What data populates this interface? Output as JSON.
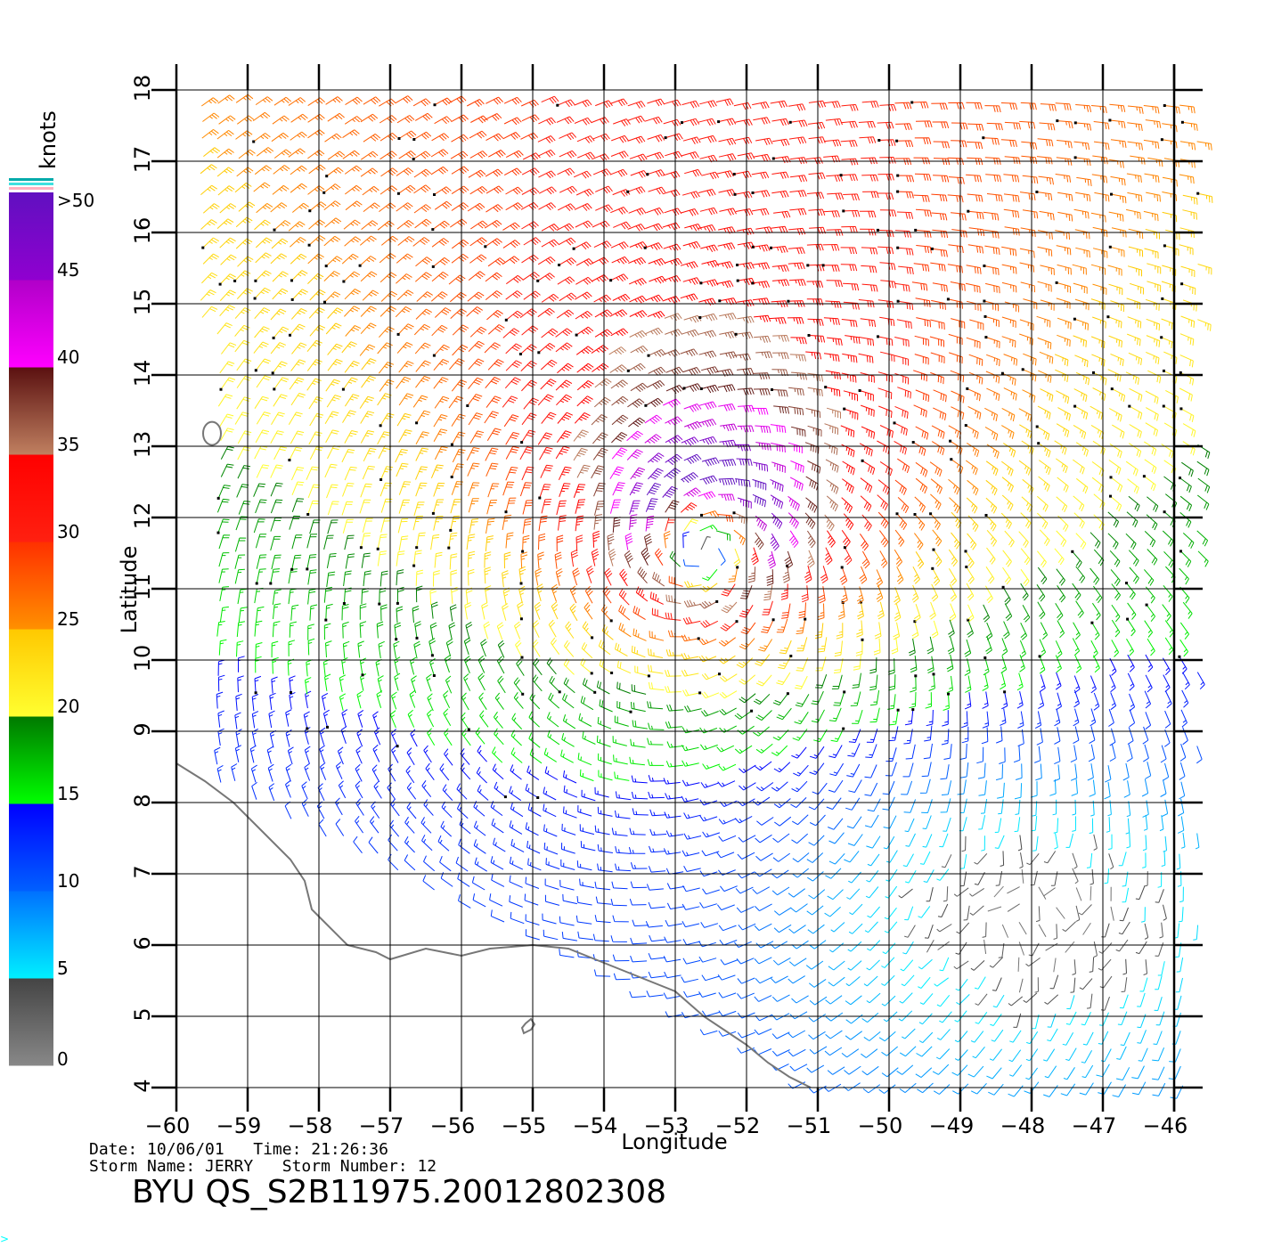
{
  "map": {
    "x_axis_label": "Longitude",
    "y_axis_label": "Latitude",
    "lon_ticks": [
      -60,
      -59,
      -58,
      -57,
      -56,
      -55,
      -54,
      -53,
      -52,
      -51,
      -50,
      -49,
      -48,
      -47,
      -46
    ],
    "lat_ticks": [
      4,
      5,
      6,
      7,
      8,
      9,
      10,
      11,
      12,
      13,
      14,
      15,
      16,
      17,
      18
    ],
    "lon_range": [
      -60,
      -45.6
    ],
    "lat_range": [
      4,
      18
    ],
    "storm_center": {
      "lon": -52.6,
      "lat": 11.7
    },
    "coastline_color": "#777777",
    "grid_color": "#000000"
  },
  "colorbar": {
    "title": "knots",
    "tick_labels": [
      ">50",
      "45",
      "40",
      "35",
      "30",
      "25",
      "20",
      "15",
      "10",
      "5",
      "0"
    ],
    "segments": [
      {
        "from": 0,
        "to": 5,
        "top": "#444444",
        "bottom": "#888888"
      },
      {
        "from": 5,
        "to": 10,
        "top": "#0070ff",
        "bottom": "#00f0ff"
      },
      {
        "from": 10,
        "to": 15,
        "top": "#0000ff",
        "bottom": "#0060ff"
      },
      {
        "from": 15,
        "to": 20,
        "top": "#007800",
        "bottom": "#00ff00"
      },
      {
        "from": 20,
        "to": 25,
        "top": "#ffc800",
        "bottom": "#ffff30"
      },
      {
        "from": 25,
        "to": 30,
        "top": "#ff3000",
        "bottom": "#ff9000"
      },
      {
        "from": 30,
        "to": 35,
        "top": "#ff0000",
        "bottom": "#ff2010"
      },
      {
        "from": 35,
        "to": 40,
        "top": "#5a1010",
        "bottom": "#c08060"
      },
      {
        "from": 40,
        "to": 45,
        "top": "#b000c8",
        "bottom": "#ff00ff"
      },
      {
        "from": 45,
        "to": 50,
        "top": "#6010c0",
        "bottom": "#9000d0"
      }
    ],
    "top_stripes": [
      "#00aaaa",
      "#40e0e0",
      "#ffb0c0"
    ]
  },
  "footer": {
    "date_line": "Date: 10/06/01   Time: 21:26:36",
    "storm_line": "Storm Name: JERRY   Storm Number: 12",
    "title": "BYU QS_S2B11975.20012802308"
  }
}
